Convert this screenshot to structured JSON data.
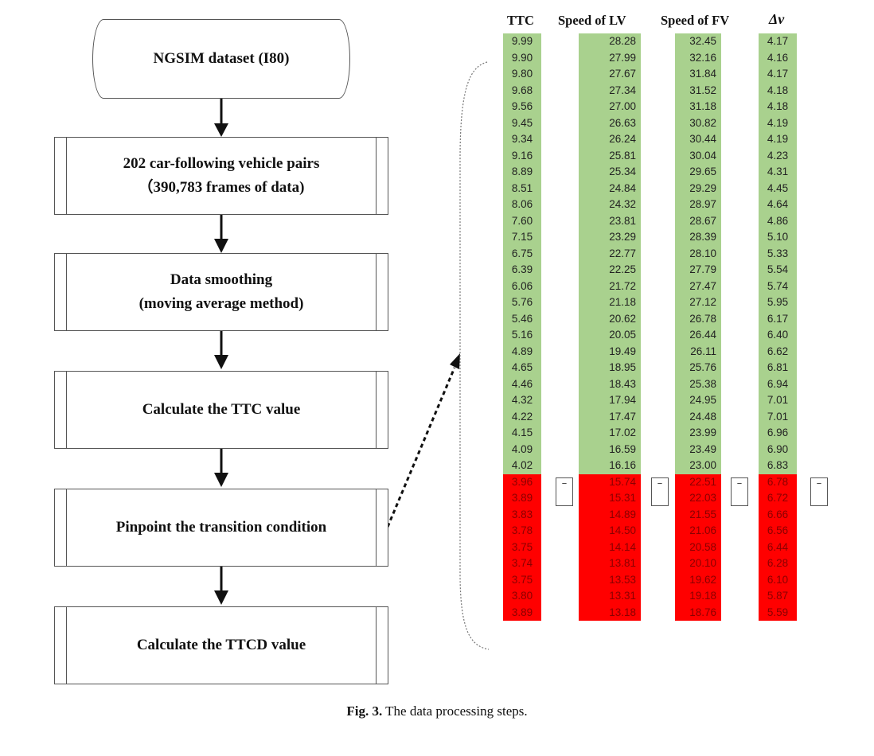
{
  "flowchart": {
    "start": "NGSIM dataset (I80)",
    "steps": [
      {
        "line1": "202 car-following vehicle pairs",
        "line2": "（390,783 frames of data)"
      },
      {
        "line1": "Data smoothing",
        "line2": "(moving average method)"
      },
      {
        "line1": "Calculate the TTC value",
        "line2": ""
      },
      {
        "line1": "Pinpoint the transition condition",
        "line2": ""
      },
      {
        "line1": "Calculate the TTCD value",
        "line2": ""
      }
    ]
  },
  "table": {
    "headers": {
      "ttc": "TTC",
      "lv": "Speed of LV",
      "fv": "Speed of FV",
      "dv": "Δν"
    },
    "ttc": [
      "9.99",
      "9.90",
      "9.80",
      "9.68",
      "9.56",
      "9.45",
      "9.34",
      "9.16",
      "8.89",
      "8.51",
      "8.06",
      "7.60",
      "7.15",
      "6.75",
      "6.39",
      "6.06",
      "5.76",
      "5.46",
      "5.16",
      "4.89",
      "4.65",
      "4.46",
      "4.32",
      "4.22",
      "4.15",
      "4.09",
      "4.02",
      "3.96",
      "3.89",
      "3.83",
      "3.78",
      "3.75",
      "3.74",
      "3.75",
      "3.80",
      "3.89"
    ],
    "lv": [
      "28.28",
      "27.99",
      "27.67",
      "27.34",
      "27.00",
      "26.63",
      "26.24",
      "25.81",
      "25.34",
      "24.84",
      "24.32",
      "23.81",
      "23.29",
      "22.77",
      "22.25",
      "21.72",
      "21.18",
      "20.62",
      "20.05",
      "19.49",
      "18.95",
      "18.43",
      "17.94",
      "17.47",
      "17.02",
      "16.59",
      "16.16",
      "15.74",
      "15.31",
      "14.89",
      "14.50",
      "14.14",
      "13.81",
      "13.53",
      "13.31",
      "13.18"
    ],
    "fv": [
      "32.45",
      "32.16",
      "31.84",
      "31.52",
      "31.18",
      "30.82",
      "30.44",
      "30.04",
      "29.65",
      "29.29",
      "28.97",
      "28.67",
      "28.39",
      "28.10",
      "27.79",
      "27.47",
      "27.12",
      "26.78",
      "26.44",
      "26.11",
      "25.76",
      "25.38",
      "24.95",
      "24.48",
      "23.99",
      "23.49",
      "23.00",
      "22.51",
      "22.03",
      "21.55",
      "21.06",
      "20.58",
      "20.10",
      "19.62",
      "19.18",
      "18.76"
    ],
    "dv": [
      "4.17",
      "4.16",
      "4.17",
      "4.18",
      "4.18",
      "4.19",
      "4.19",
      "4.23",
      "4.31",
      "4.45",
      "4.64",
      "4.86",
      "5.10",
      "5.33",
      "5.54",
      "5.74",
      "5.95",
      "6.17",
      "6.40",
      "6.62",
      "6.81",
      "6.94",
      "7.01",
      "7.01",
      "6.96",
      "6.90",
      "6.83",
      "6.78",
      "6.72",
      "6.66",
      "6.56",
      "6.44",
      "6.28",
      "6.10",
      "5.87",
      "5.59"
    ],
    "green_rows": 27,
    "colors": {
      "safe": "#a9d18e",
      "danger": "#ff0000"
    },
    "marker_glyph": "−"
  },
  "caption": {
    "label": "Fig. 3.",
    "text": " The data processing steps."
  }
}
